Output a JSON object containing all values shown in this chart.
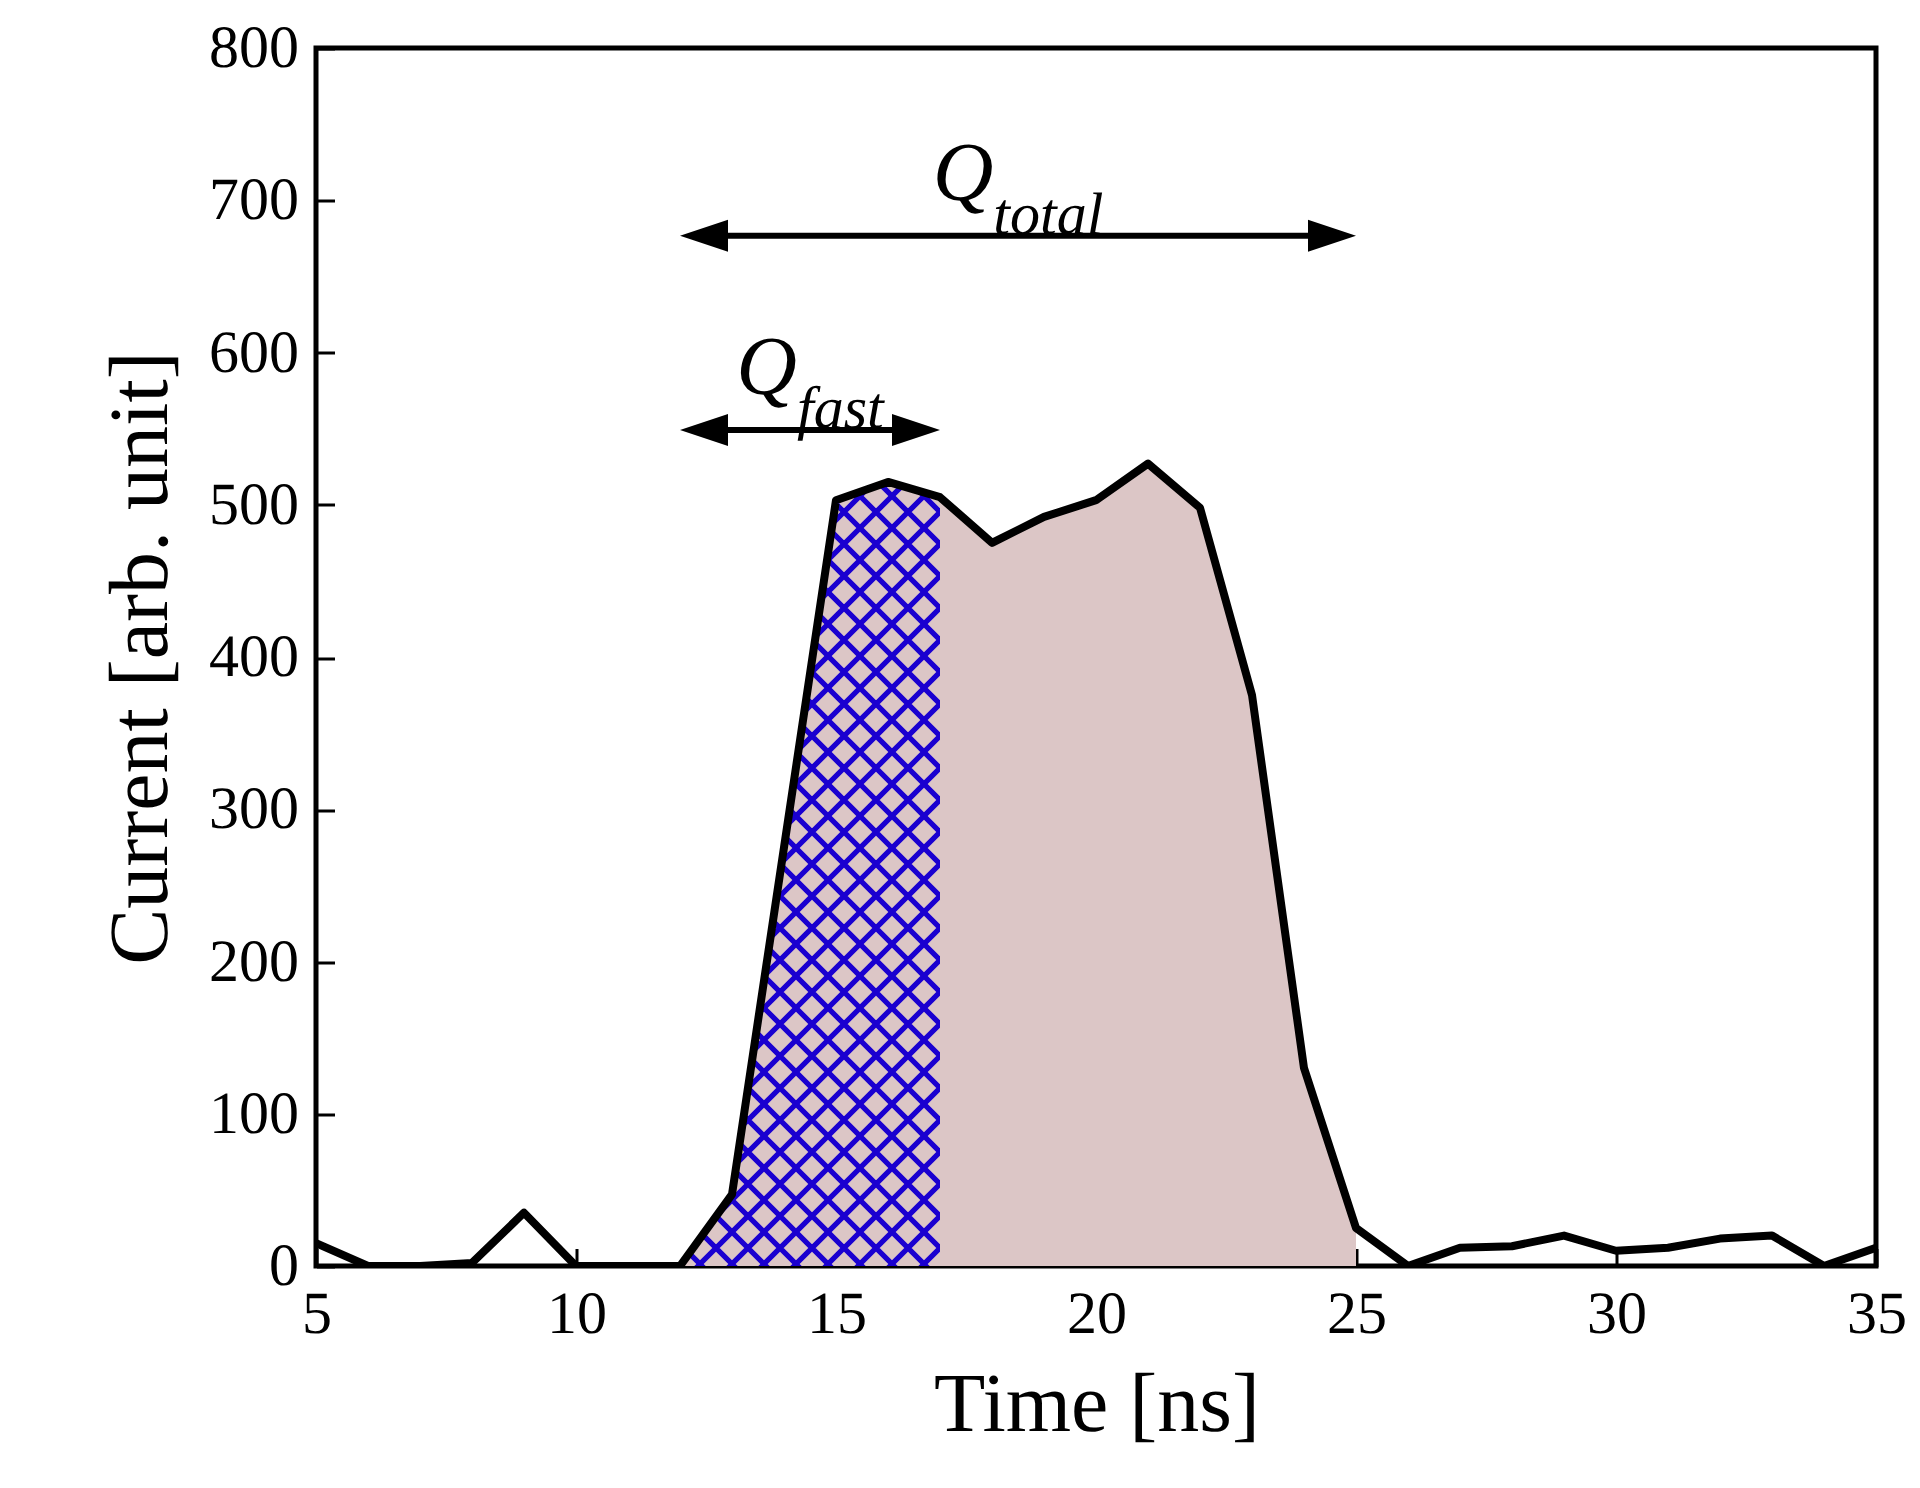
{
  "chart_data": {
    "type": "line",
    "xlabel": "Time [ns]",
    "ylabel": "Current [arb. unit]",
    "xlim": [
      5,
      35
    ],
    "xticks": [
      5,
      10,
      15,
      20,
      25,
      30,
      35
    ],
    "ylim": [
      0,
      800
    ],
    "yticks": [
      0,
      100,
      200,
      300,
      400,
      500,
      600,
      700,
      800
    ],
    "grid": false,
    "marker": "none",
    "line_style": "solid",
    "series": [
      {
        "type": "line",
        "color": "#000000",
        "x": [
          5,
          6,
          7,
          8,
          9,
          10,
          11,
          12,
          13,
          14,
          15,
          16,
          17,
          18,
          19,
          20,
          21,
          22,
          23,
          24,
          25,
          26,
          27,
          28,
          29,
          30,
          31,
          32,
          33,
          34,
          35
        ],
        "values": [
          15,
          0,
          0,
          2,
          35,
          0,
          0,
          0,
          47,
          275,
          503,
          515,
          505,
          475,
          492,
          503,
          527,
          498,
          375,
          130,
          25,
          0,
          12,
          13,
          20,
          10,
          12,
          18,
          20,
          0,
          12
        ]
      },
      {
        "type": "area",
        "color": "#dcc6c6",
        "x": [
          12,
          13,
          14,
          15,
          16,
          17,
          18,
          19,
          20,
          21,
          22,
          23,
          24,
          25
        ],
        "values": [
          0,
          47,
          275,
          503,
          515,
          505,
          475,
          492,
          503,
          527,
          498,
          375,
          130,
          25
        ]
      },
      {
        "type": "area",
        "color": "#1a00d0",
        "x": [
          12,
          13,
          14,
          15,
          16,
          17
        ],
        "values": [
          0,
          47,
          275,
          503,
          515,
          505
        ]
      }
    ],
    "annotations": [
      "Q$_{total}$",
      "Q$_{fast}$"
    ]
  }
}
